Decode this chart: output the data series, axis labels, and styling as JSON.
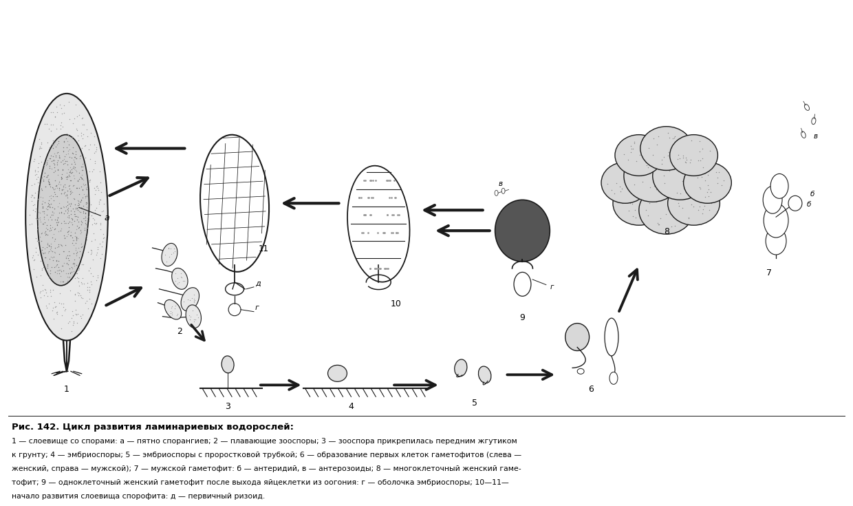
{
  "title": "Рис. 142. Цикл развития ламинариевых водорослей:",
  "caption_lines": [
    "1 — слоевище со спорами: а — пятно спорангиев; 2 — плавающие зооспоры; 3 — зооспора прикрепилась передним жгутиком",
    "к грунту; 4 — эмбриоспоры; 5 — эмбриоспоры с проростковой трубкой; 6 — образование первых клеток гаметофитов (слева —",
    "женский, справа — мужской); 7 — мужской гаметофит: б — антеридий, в — антерозоиды; 8 — многоклеточный женский гаме-",
    "тофит; 9 — одноклеточный женский гаметофит после выхода яйцеклетки из оогония: г — оболочка эмбриоспоры; 10—11—",
    "начало развития слоевища спорофита: д — первичный ризоид."
  ],
  "bg_color": "#ffffff",
  "ink_color": "#1a1a1a",
  "fig_width": 12.4,
  "fig_height": 7.35
}
